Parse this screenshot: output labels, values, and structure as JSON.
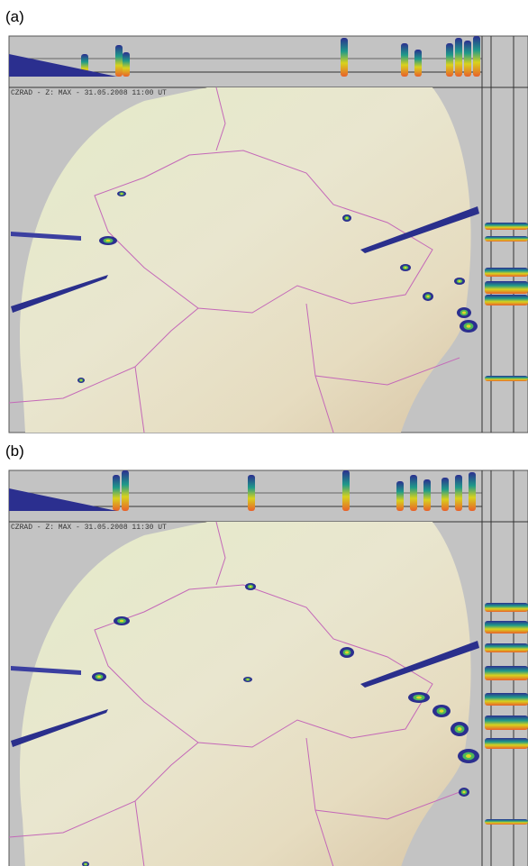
{
  "panels": [
    {
      "label": "(a)",
      "caption": "CZRAD - Z: MAX - 31.05.2008 11:00 UT"
    },
    {
      "label": "(b)",
      "caption": "CZRAD - Z: MAX - 31.05.2008 11:30 UT"
    }
  ]
}
